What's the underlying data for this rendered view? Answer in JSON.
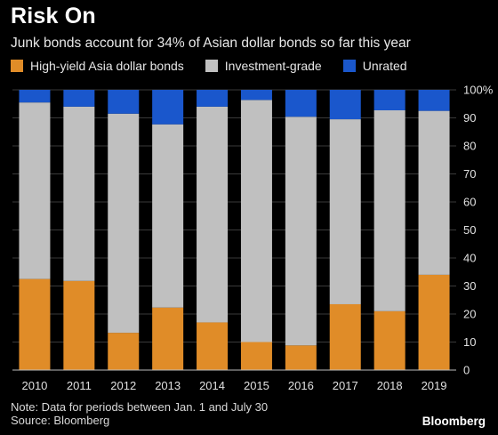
{
  "header": {
    "title": "Risk On",
    "subtitle": "Junk bonds account for 34% of Asian dollar bonds so far this year"
  },
  "footer": {
    "note": "Note: Data for periods between Jan. 1 and July 30",
    "source": "Source: Bloomberg",
    "brand": "Bloomberg"
  },
  "chart_data": {
    "type": "bar",
    "stacked": true,
    "title": "Risk On",
    "subtitle": "Junk bonds account for 34% of Asian dollar bonds so far this year",
    "categories": [
      "2010",
      "2011",
      "2012",
      "2013",
      "2014",
      "2015",
      "2016",
      "2017",
      "2018",
      "2019"
    ],
    "series": [
      {
        "name": "High-yield Asia dollar bonds",
        "color": "#e08c28",
        "values": [
          32.5,
          31.8,
          13.3,
          22.3,
          17.0,
          10.0,
          8.8,
          23.5,
          21.0,
          34.0
        ]
      },
      {
        "name": "Investment-grade",
        "color": "#c0c0c0",
        "values": [
          63.0,
          62.2,
          78.2,
          65.4,
          77.0,
          86.4,
          81.6,
          66.0,
          71.7,
          58.5
        ]
      },
      {
        "name": "Unrated",
        "color": "#1a57cc",
        "values": [
          4.5,
          6.0,
          8.5,
          12.3,
          6.0,
          3.6,
          9.6,
          10.5,
          7.3,
          7.5
        ]
      }
    ],
    "ylim": [
      0,
      100
    ],
    "y_ticks": [
      "0",
      "10",
      "20",
      "30",
      "40",
      "50",
      "60",
      "70",
      "80",
      "90",
      "100%"
    ],
    "y_axis_side": "right",
    "grid": true,
    "legend_position": "top-left"
  }
}
